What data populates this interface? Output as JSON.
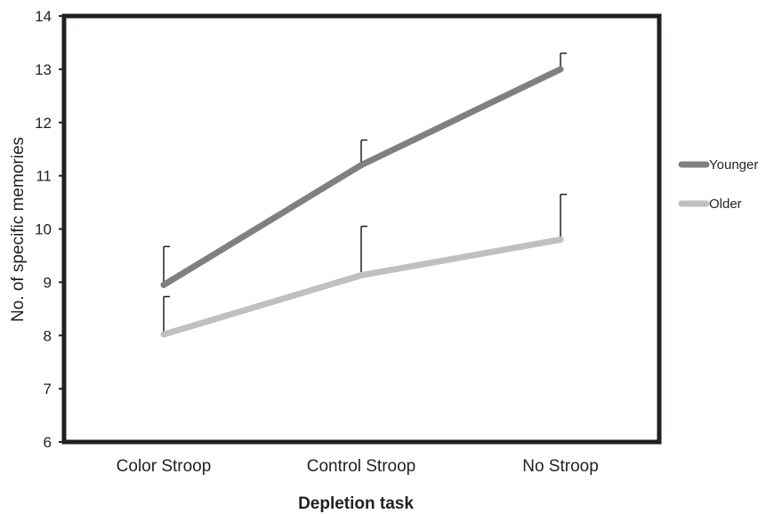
{
  "chart_data": {
    "type": "line",
    "xlabel": "Depletion task",
    "ylabel": "No. of specific memories",
    "categories": [
      "Color Stroop",
      "Control Stroop",
      "No Stroop"
    ],
    "ylim": [
      6,
      14
    ],
    "yticks": [
      6,
      7,
      8,
      9,
      10,
      11,
      12,
      13,
      14
    ],
    "grid": false,
    "legend_position": "right",
    "series": [
      {
        "name": "Younger",
        "values": [
          8.95,
          11.2,
          13.0
        ],
        "error_upper": [
          9.67,
          11.67,
          13.3
        ],
        "color": "#808080"
      },
      {
        "name": "Older",
        "values": [
          8.02,
          9.13,
          9.8
        ],
        "error_upper": [
          8.73,
          10.05,
          10.65
        ],
        "color": "#c0c0c0"
      }
    ]
  }
}
